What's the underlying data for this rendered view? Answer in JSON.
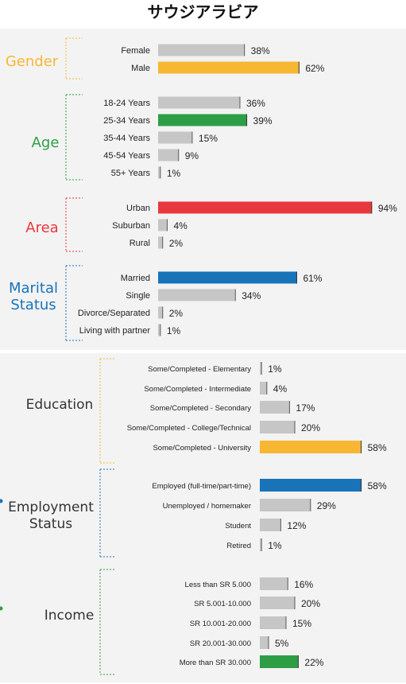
{
  "title": "サウジアラビア",
  "colors": {
    "gray_bar": "#c6c6c6",
    "gray_edge": "#5a5a5a",
    "gender": "#f7b733",
    "age": "#2e9e46",
    "area": "#e8383d",
    "marital": "#1873b8",
    "bracket_bottom": "#f7b733"
  },
  "chart_data": [
    {
      "type": "bar",
      "orientation": "horizontal",
      "groups": [
        {
          "name": "Gender",
          "color": "#f7b733",
          "categories": [
            "Female",
            "Male"
          ],
          "values": [
            38,
            62
          ],
          "highlight_index": 1
        },
        {
          "name": "Age",
          "color": "#2e9e46",
          "categories": [
            "18-24 Years",
            "25-34 Years",
            "35-44 Years",
            "45-54 Years",
            "55+ Years"
          ],
          "values": [
            36,
            39,
            15,
            9,
            1
          ],
          "highlight_index": 1
        },
        {
          "name": "Area",
          "color": "#e8383d",
          "categories": [
            "Urban",
            "Suburban",
            "Rural"
          ],
          "values": [
            94,
            4,
            2
          ],
          "highlight_index": 0
        },
        {
          "name": "Marital Status",
          "color": "#1873b8",
          "categories": [
            "Married",
            "Single",
            "Divorce/Separated",
            "Living with partner"
          ],
          "values": [
            61,
            34,
            2,
            1
          ],
          "highlight_index": 0
        }
      ],
      "unit": "%",
      "xlim": [
        0,
        100
      ]
    },
    {
      "type": "bar",
      "orientation": "horizontal",
      "groups": [
        {
          "name": "Education",
          "color": "#f7b733",
          "categories": [
            "Some/Completed - Elementary",
            "Some/Completed - Intermediate",
            "Some/Completed - Secondary",
            "Some/Completed - College/Technical",
            "Some/Completed - University"
          ],
          "values": [
            1,
            4,
            17,
            20,
            58
          ],
          "highlight_index": 4
        },
        {
          "name": "Employment Status",
          "color": "#1873b8",
          "categories": [
            "Employed (full-time/part-time)",
            "Unemployed / homemaker",
            "Student",
            "Retired"
          ],
          "values": [
            58,
            29,
            12,
            1
          ],
          "highlight_index": 0
        },
        {
          "name": "Income",
          "color": "#2e9e46",
          "categories": [
            "Less than SR 5.000",
            "SR 5.001-10.000",
            "SR 10.001-20.000",
            "SR 20.001-30.000",
            "More than SR 30.000"
          ],
          "values": [
            16,
            20,
            15,
            5,
            22
          ],
          "highlight_index": 4
        }
      ],
      "unit": "%",
      "xlim": [
        0,
        100
      ]
    }
  ]
}
